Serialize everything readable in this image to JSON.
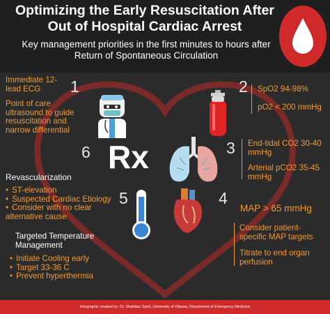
{
  "header": {
    "title": "Optimizing the Early Resuscitation After Out of Hospital Cardiac Arrest",
    "subtitle": "Key management priorities in the first minutes to hours after Return of Spontaneous Circulation"
  },
  "sections": {
    "ecg": {
      "number": "1",
      "title": "Immediate 12-lead ECG",
      "text": "Point of care ultrasound to guide resuscitation and narrow differential"
    },
    "oxygen": {
      "number": "2",
      "spo2": "SpO2 94-98%",
      "po2": "pO2 < 200 mmHg"
    },
    "ventilation": {
      "number": "3",
      "etco2": "End-tidal CO2 30-40 mmHg",
      "pco2": "Arterial pCO2 35-45 mmHg"
    },
    "perfusion": {
      "number": "4",
      "map": "MAP > 65 mmHg",
      "targets": "Consider patient-specific MAP targets",
      "titrate": "Titrate to end organ perfusion"
    },
    "temperature": {
      "number": "5",
      "title": "Targeted Temperature Management",
      "bullets": [
        "Initiate Cooling early",
        "Target 33-36 C",
        "Prevent hyperthermia"
      ]
    },
    "revascularization": {
      "number": "6",
      "rx": "Rx",
      "title": "Revascularization",
      "bullets": [
        "ST-elevation",
        "Suspected Cardiac Etiology",
        "Consider with no clear alternative cause"
      ]
    }
  },
  "footer": {
    "credit": "Infographic created by: Dr. Shahbaz Syed, University of Ottawa, Department of Emergency Medicine"
  },
  "icons": [
    "blood-drop-icon",
    "doctor-icon",
    "oxygen-tank-icon",
    "lungs-icon",
    "heart-anatomy-icon",
    "thermometer-icon"
  ],
  "colors": {
    "accent": "#f29a2e",
    "red": "#d0292a",
    "background": "#2b2b2b",
    "header": "#1f1f1f"
  }
}
